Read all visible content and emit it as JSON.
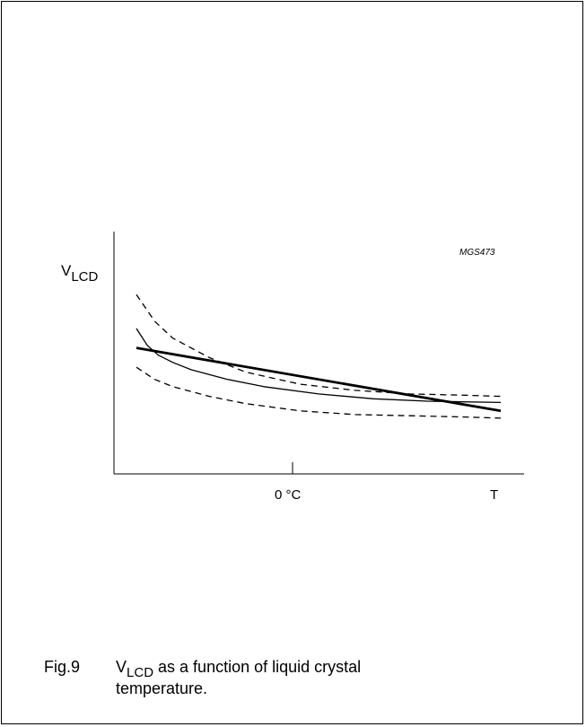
{
  "chart_data": {
    "type": "line",
    "code": "MGS473",
    "ylabel_main": "V",
    "ylabel_sub": "LCD",
    "xticks": [
      "0 °C",
      "T"
    ],
    "caption": {
      "fig": "Fig.9",
      "sub": "LCD",
      "main": "V",
      "rest": " as a function of liquid crystal temperature."
    },
    "series": [
      {
        "style": "dashed",
        "x": [
          0.0,
          0.05,
          0.1,
          0.2,
          0.3,
          0.45,
          0.6,
          0.75,
          0.9,
          1.0
        ],
        "y": [
          0.74,
          0.63,
          0.56,
          0.48,
          0.42,
          0.37,
          0.345,
          0.33,
          0.325,
          0.32
        ]
      },
      {
        "style": "dashed",
        "x": [
          0.0,
          0.05,
          0.1,
          0.2,
          0.3,
          0.45,
          0.6,
          0.75,
          0.9,
          1.0
        ],
        "y": [
          0.44,
          0.39,
          0.36,
          0.32,
          0.29,
          0.26,
          0.245,
          0.24,
          0.235,
          0.23
        ]
      },
      {
        "style": "thin",
        "x": [
          0.0,
          0.03,
          0.06,
          0.1,
          0.15,
          0.25,
          0.35,
          0.5,
          0.65,
          0.8,
          1.0
        ],
        "y": [
          0.6,
          0.53,
          0.49,
          0.46,
          0.43,
          0.39,
          0.36,
          0.33,
          0.31,
          0.3,
          0.295
        ]
      },
      {
        "style": "thick",
        "x": [
          0.0,
          1.0
        ],
        "y": [
          0.52,
          0.26
        ]
      }
    ]
  }
}
